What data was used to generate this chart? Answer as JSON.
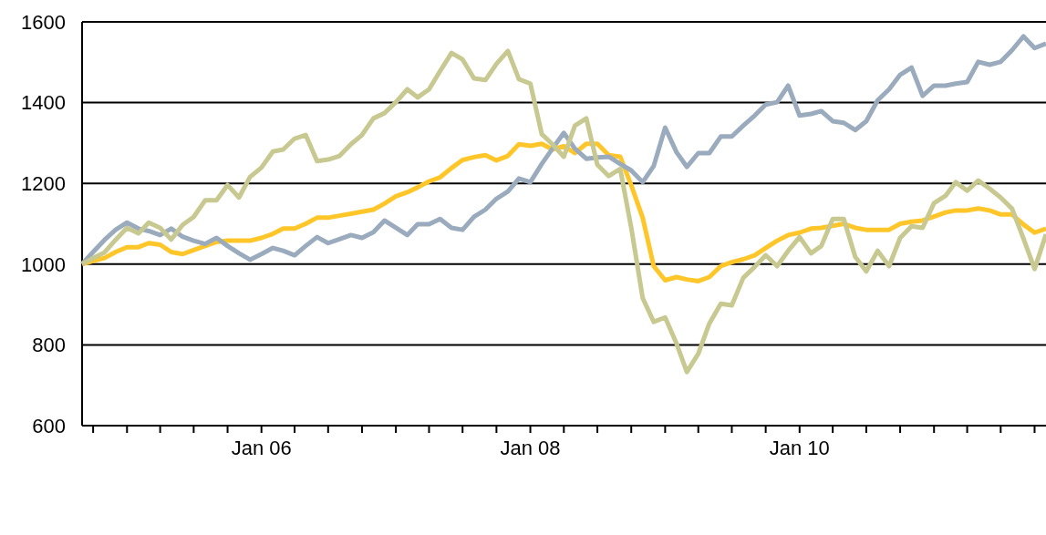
{
  "chart_data": {
    "type": "line",
    "x": [
      "2004-09",
      "2004-10",
      "2004-11",
      "2004-12",
      "2005-01",
      "2005-02",
      "2005-03",
      "2005-04",
      "2005-05",
      "2005-06",
      "2005-07",
      "2005-08",
      "2005-09",
      "2005-10",
      "2005-11",
      "2005-12",
      "2006-01",
      "2006-02",
      "2006-03",
      "2006-04",
      "2006-05",
      "2006-06",
      "2006-07",
      "2006-08",
      "2006-09",
      "2006-10",
      "2006-11",
      "2006-12",
      "2007-01",
      "2007-02",
      "2007-03",
      "2007-04",
      "2007-05",
      "2007-06",
      "2007-07",
      "2007-08",
      "2007-09",
      "2007-10",
      "2007-11",
      "2007-12",
      "2008-01",
      "2008-02",
      "2008-03",
      "2008-04",
      "2008-05",
      "2008-06",
      "2008-07",
      "2008-08",
      "2008-09",
      "2008-10",
      "2008-11",
      "2008-12",
      "2009-01",
      "2009-02",
      "2009-03",
      "2009-04",
      "2009-05",
      "2009-06",
      "2009-07",
      "2009-08",
      "2009-09",
      "2009-10",
      "2009-11",
      "2009-12",
      "2010-01",
      "2010-02",
      "2010-03",
      "2010-04",
      "2010-05",
      "2010-06",
      "2010-07",
      "2010-08",
      "2010-09",
      "2010-10",
      "2010-11",
      "2010-12",
      "2011-01",
      "2011-02",
      "2011-03",
      "2011-04",
      "2011-05",
      "2011-06",
      "2011-07",
      "2011-08",
      "2011-09",
      "2011-10",
      "2011-11"
    ],
    "series": [
      {
        "color": "#ffc629",
        "values": [
          1000,
          1008,
          1015,
          1030,
          1042,
          1042,
          1052,
          1048,
          1030,
          1025,
          1035,
          1045,
          1055,
          1058,
          1058,
          1058,
          1065,
          1075,
          1088,
          1088,
          1100,
          1115,
          1115,
          1120,
          1125,
          1130,
          1135,
          1150,
          1168,
          1178,
          1190,
          1205,
          1215,
          1238,
          1258,
          1265,
          1270,
          1257,
          1268,
          1297,
          1293,
          1298,
          1284,
          1292,
          1275,
          1298,
          1298,
          1270,
          1266,
          1195,
          1115,
          995,
          960,
          968,
          962,
          958,
          968,
          995,
          1005,
          1012,
          1022,
          1040,
          1058,
          1072,
          1078,
          1088,
          1090,
          1095,
          1100,
          1090,
          1085,
          1085,
          1085,
          1100,
          1105,
          1108,
          1118,
          1128,
          1133,
          1133,
          1138,
          1133,
          1123,
          1123,
          1098,
          1078,
          1088
        ]
      },
      {
        "color": "#9aabbd",
        "values": [
          1000,
          1030,
          1060,
          1085,
          1103,
          1088,
          1082,
          1072,
          1088,
          1068,
          1058,
          1050,
          1065,
          1045,
          1027,
          1011,
          1025,
          1040,
          1033,
          1022,
          1045,
          1067,
          1052,
          1062,
          1072,
          1065,
          1079,
          1108,
          1090,
          1072,
          1099,
          1099,
          1112,
          1090,
          1085,
          1117,
          1135,
          1162,
          1180,
          1212,
          1203,
          1248,
          1286,
          1325,
          1286,
          1261,
          1264,
          1266,
          1248,
          1232,
          1203,
          1243,
          1338,
          1277,
          1241,
          1275,
          1275,
          1316,
          1316,
          1343,
          1368,
          1395,
          1401,
          1442,
          1368,
          1372,
          1379,
          1354,
          1350,
          1332,
          1354,
          1406,
          1433,
          1469,
          1487,
          1417,
          1442,
          1442,
          1447,
          1451,
          1501,
          1494,
          1501,
          1530,
          1564,
          1535,
          1546
        ]
      },
      {
        "color": "#c8c891",
        "values": [
          1000,
          1015,
          1029,
          1060,
          1090,
          1076,
          1103,
          1090,
          1061,
          1097,
          1117,
          1158,
          1158,
          1196,
          1165,
          1216,
          1239,
          1279,
          1284,
          1311,
          1320,
          1255,
          1259,
          1268,
          1297,
          1320,
          1361,
          1374,
          1401,
          1433,
          1413,
          1433,
          1478,
          1523,
          1507,
          1460,
          1456,
          1496,
          1528,
          1458,
          1447,
          1322,
          1297,
          1266,
          1343,
          1361,
          1246,
          1218,
          1236,
          1090,
          916,
          857,
          868,
          803,
          733,
          778,
          853,
          902,
          898,
          966,
          993,
          1022,
          995,
          1033,
          1067,
          1027,
          1045,
          1112,
          1112,
          1018,
          982,
          1033,
          995,
          1065,
          1094,
          1090,
          1151,
          1169,
          1203,
          1182,
          1207,
          1187,
          1165,
          1137,
          1063,
          988,
          1074
        ]
      }
    ],
    "xlim": [
      "2004-09",
      "2011-11"
    ],
    "xticks": [
      {
        "value": "2004-10",
        "label": null
      },
      {
        "value": "2005-01",
        "label": null
      },
      {
        "value": "2005-04",
        "label": null
      },
      {
        "value": "2005-07",
        "label": null
      },
      {
        "value": "2005-10",
        "label": null
      },
      {
        "value": "2006-01",
        "label": "Jan 06"
      },
      {
        "value": "2006-04",
        "label": null
      },
      {
        "value": "2006-07",
        "label": null
      },
      {
        "value": "2006-10",
        "label": null
      },
      {
        "value": "2007-01",
        "label": null
      },
      {
        "value": "2007-04",
        "label": null
      },
      {
        "value": "2007-07",
        "label": null
      },
      {
        "value": "2007-10",
        "label": null
      },
      {
        "value": "2008-01",
        "label": "Jan 08"
      },
      {
        "value": "2008-04",
        "label": null
      },
      {
        "value": "2008-07",
        "label": null
      },
      {
        "value": "2008-10",
        "label": null
      },
      {
        "value": "2009-01",
        "label": null
      },
      {
        "value": "2009-04",
        "label": null
      },
      {
        "value": "2009-07",
        "label": null
      },
      {
        "value": "2009-10",
        "label": null
      },
      {
        "value": "2010-01",
        "label": "Jan 10"
      },
      {
        "value": "2010-04",
        "label": null
      },
      {
        "value": "2010-07",
        "label": null
      },
      {
        "value": "2010-10",
        "label": null
      },
      {
        "value": "2011-01",
        "label": null
      },
      {
        "value": "2011-04",
        "label": null
      },
      {
        "value": "2011-07",
        "label": null
      },
      {
        "value": "2011-10",
        "label": null
      }
    ],
    "ylim": [
      600,
      1600
    ],
    "yticks": [
      600,
      800,
      1000,
      1200,
      1400,
      1600
    ],
    "grid": "y",
    "marker": "none",
    "line_style": "solid"
  }
}
